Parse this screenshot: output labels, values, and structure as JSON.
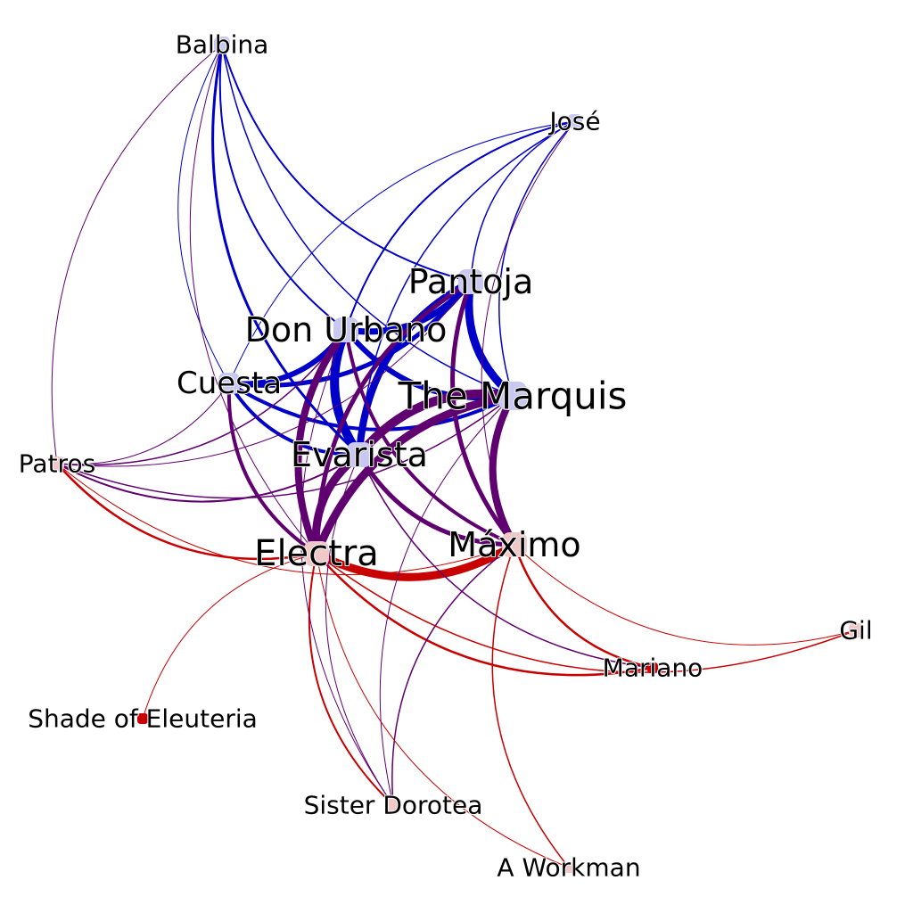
{
  "graph": {
    "colors": {
      "blue": "#0000c8",
      "purple": "#600070",
      "red": "#c80000",
      "node_blue": "#c8c8f0",
      "node_pink": "#f0c8c8",
      "node_red": "#c80000",
      "background": "#ffffff"
    },
    "nodes": [
      {
        "id": "balbina",
        "label": "Balbina",
        "color": "node_blue"
      },
      {
        "id": "jose",
        "label": "José",
        "color": "node_blue"
      },
      {
        "id": "pantoja",
        "label": "Pantoja",
        "color": "node_blue"
      },
      {
        "id": "don_urbano",
        "label": "Don Urbano",
        "color": "node_blue"
      },
      {
        "id": "cuesta",
        "label": "Cuesta",
        "color": "node_blue"
      },
      {
        "id": "the_marquis",
        "label": "The Marquis",
        "color": "node_blue"
      },
      {
        "id": "evarista",
        "label": "Evarista",
        "color": "node_blue"
      },
      {
        "id": "patros",
        "label": "Patros",
        "color": "node_pink"
      },
      {
        "id": "electra",
        "label": "Electra",
        "color": "node_pink"
      },
      {
        "id": "maximo",
        "label": "Máximo",
        "color": "node_pink"
      },
      {
        "id": "gil",
        "label": "Gil",
        "color": "node_pink"
      },
      {
        "id": "mariano",
        "label": "Mariano",
        "color": "node_red"
      },
      {
        "id": "shade",
        "label": "Shade of Eleuteria",
        "color": "node_red"
      },
      {
        "id": "dorotea",
        "label": "Sister Dorotea",
        "color": "node_pink"
      },
      {
        "id": "workman",
        "label": "A Workman",
        "color": "node_pink"
      }
    ],
    "edges": [
      {
        "s": "pantoja",
        "t": "the_marquis",
        "c": "blue",
        "w": 9
      },
      {
        "s": "don_urbano",
        "t": "pantoja",
        "c": "blue",
        "w": 7
      },
      {
        "s": "don_urbano",
        "t": "the_marquis",
        "c": "blue",
        "w": 6
      },
      {
        "s": "don_urbano",
        "t": "evarista",
        "c": "blue",
        "w": 10
      },
      {
        "s": "pantoja",
        "t": "evarista",
        "c": "blue",
        "w": 8
      },
      {
        "s": "cuesta",
        "t": "don_urbano",
        "c": "blue",
        "w": 6
      },
      {
        "s": "cuesta",
        "t": "pantoja",
        "c": "blue",
        "w": 5
      },
      {
        "s": "cuesta",
        "t": "the_marquis",
        "c": "blue",
        "w": 4
      },
      {
        "s": "cuesta",
        "t": "evarista",
        "c": "blue",
        "w": 4
      },
      {
        "s": "the_marquis",
        "t": "evarista",
        "c": "purple",
        "w": 10
      },
      {
        "s": "pantoja",
        "t": "maximo",
        "c": "purple",
        "w": 5
      },
      {
        "s": "the_marquis",
        "t": "maximo",
        "c": "purple",
        "w": 8
      },
      {
        "s": "the_marquis",
        "t": "electra",
        "c": "purple",
        "w": 9
      },
      {
        "s": "evarista",
        "t": "electra",
        "c": "purple",
        "w": 9
      },
      {
        "s": "don_urbano",
        "t": "electra",
        "c": "purple",
        "w": 8
      },
      {
        "s": "cuesta",
        "t": "electra",
        "c": "purple",
        "w": 4
      },
      {
        "s": "pantoja",
        "t": "electra",
        "c": "purple",
        "w": 5
      },
      {
        "s": "evarista",
        "t": "maximo",
        "c": "purple",
        "w": 5
      },
      {
        "s": "don_urbano",
        "t": "maximo",
        "c": "purple",
        "w": 4
      },
      {
        "s": "electra",
        "t": "maximo",
        "c": "red",
        "w": 9
      },
      {
        "s": "balbina",
        "t": "cuesta",
        "c": "blue",
        "w": 1
      },
      {
        "s": "balbina",
        "t": "don_urbano",
        "c": "blue",
        "w": 2
      },
      {
        "s": "balbina",
        "t": "evarista",
        "c": "blue",
        "w": 3
      },
      {
        "s": "balbina",
        "t": "pantoja",
        "c": "blue",
        "w": 2
      },
      {
        "s": "balbina",
        "t": "the_marquis",
        "c": "blue",
        "w": 1.5
      },
      {
        "s": "balbina",
        "t": "patros",
        "c": "purple",
        "w": 1
      },
      {
        "s": "balbina",
        "t": "electra",
        "c": "purple",
        "w": 1
      },
      {
        "s": "jose",
        "t": "pantoja",
        "c": "blue",
        "w": 1.5
      },
      {
        "s": "jose",
        "t": "don_urbano",
        "c": "blue",
        "w": 2
      },
      {
        "s": "jose",
        "t": "cuesta",
        "c": "blue",
        "w": 1
      },
      {
        "s": "jose",
        "t": "the_marquis",
        "c": "blue",
        "w": 1.5
      },
      {
        "s": "jose",
        "t": "evarista",
        "c": "blue",
        "w": 1.5
      },
      {
        "s": "jose",
        "t": "maximo",
        "c": "purple",
        "w": 1
      },
      {
        "s": "patros",
        "t": "cuesta",
        "c": "purple",
        "w": 1
      },
      {
        "s": "patros",
        "t": "don_urbano",
        "c": "purple",
        "w": 1.5
      },
      {
        "s": "patros",
        "t": "evarista",
        "c": "purple",
        "w": 2
      },
      {
        "s": "patros",
        "t": "pantoja",
        "c": "purple",
        "w": 1
      },
      {
        "s": "patros",
        "t": "the_marquis",
        "c": "purple",
        "w": 1.5
      },
      {
        "s": "patros",
        "t": "electra",
        "c": "red",
        "w": 2.5
      },
      {
        "s": "patros",
        "t": "maximo",
        "c": "red",
        "w": 1
      },
      {
        "s": "electra",
        "t": "gil",
        "c": "red",
        "w": 1.5
      },
      {
        "s": "maximo",
        "t": "gil",
        "c": "red",
        "w": 1
      },
      {
        "s": "electra",
        "t": "mariano",
        "c": "red",
        "w": 2.5
      },
      {
        "s": "maximo",
        "t": "mariano",
        "c": "red",
        "w": 2.5
      },
      {
        "s": "evarista",
        "t": "mariano",
        "c": "purple",
        "w": 1.5
      },
      {
        "s": "electra",
        "t": "shade",
        "c": "red",
        "w": 1
      },
      {
        "s": "electra",
        "t": "dorotea",
        "c": "red",
        "w": 2
      },
      {
        "s": "maximo",
        "t": "dorotea",
        "c": "purple",
        "w": 1.5
      },
      {
        "s": "evarista",
        "t": "dorotea",
        "c": "purple",
        "w": 1
      },
      {
        "s": "don_urbano",
        "t": "dorotea",
        "c": "purple",
        "w": 1
      },
      {
        "s": "the_marquis",
        "t": "dorotea",
        "c": "purple",
        "w": 1
      },
      {
        "s": "electra",
        "t": "workman",
        "c": "red",
        "w": 1
      },
      {
        "s": "maximo",
        "t": "workman",
        "c": "red",
        "w": 1.5
      }
    ]
  }
}
